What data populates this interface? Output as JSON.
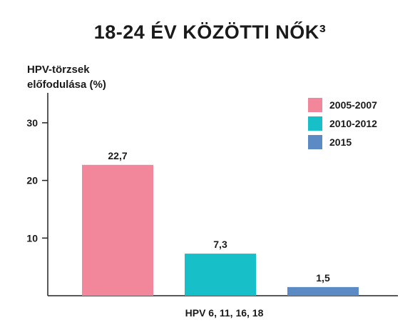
{
  "chart_data": {
    "type": "bar",
    "title": "18-24 ÉV KÖZÖTTI NŐK³",
    "ylabel": "HPV-törzsek\nelőfodulása (%)",
    "ylabel_lines": [
      "HPV-törzsek",
      "előfodulása (%)"
    ],
    "xlabel": "",
    "categories": [
      "HPV 6, 11, 16, 18"
    ],
    "series": [
      {
        "name": "2005-2007",
        "values": [
          22.7
        ],
        "label": "22,7",
        "color": "#f2879b"
      },
      {
        "name": "2010-2012",
        "values": [
          7.3
        ],
        "label": "7,3",
        "color": "#17c0c9"
      },
      {
        "name": "2015",
        "values": [
          1.5
        ],
        "label": "1,5",
        "color": "#5b8ac4"
      }
    ],
    "ylim": [
      0,
      30
    ],
    "yticks": [
      10,
      20,
      30
    ],
    "ytick_labels": [
      "10",
      "20",
      "30"
    ],
    "grid": false,
    "legend_position": "top-right"
  }
}
